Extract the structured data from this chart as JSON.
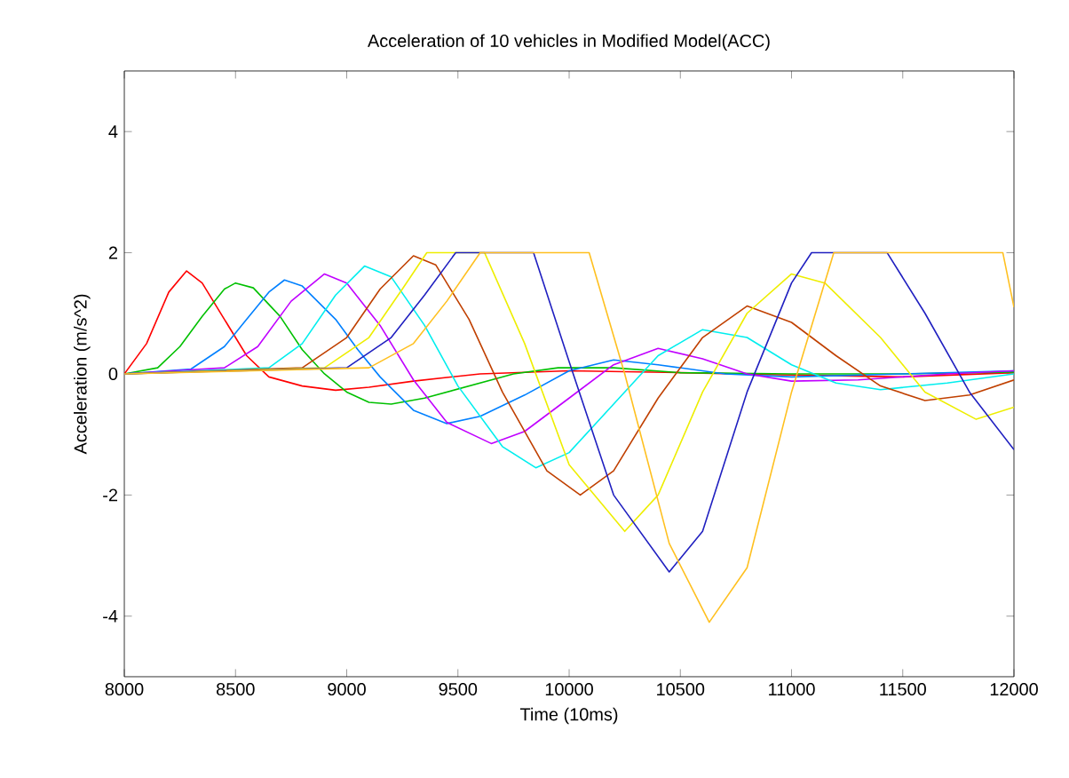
{
  "chart_data": {
    "type": "line",
    "title": "Acceleration of 10 vehicles in Modified Model(ACC)",
    "xlabel": "Time (10ms)",
    "ylabel": "Acceleration (m/s^2)",
    "xlim": [
      8000,
      12000
    ],
    "ylim": [
      -5,
      5
    ],
    "xticks": [
      8000,
      8500,
      9000,
      9500,
      10000,
      10500,
      11000,
      11500,
      12000
    ],
    "yticks": [
      -4,
      -2,
      0,
      2,
      4
    ],
    "grid": false,
    "marker": "none",
    "line_style": "solid",
    "series": [
      {
        "color": "#ff0000",
        "x": [
          8000,
          8100,
          8200,
          8280,
          8350,
          8450,
          8550,
          8650,
          8800,
          8950,
          9100,
          9300,
          9600,
          10000,
          10500,
          11000,
          11500,
          12000
        ],
        "values": [
          0,
          0.5,
          1.35,
          1.7,
          1.5,
          0.9,
          0.3,
          -0.05,
          -0.2,
          -0.27,
          -0.22,
          -0.12,
          0,
          0.05,
          0.02,
          -0.02,
          -0.05,
          0.02
        ]
      },
      {
        "color": "#00c000",
        "x": [
          8000,
          8150,
          8250,
          8350,
          8450,
          8500,
          8580,
          8700,
          8800,
          8900,
          9000,
          9100,
          9200,
          9350,
          9550,
          9750,
          9950,
          10200,
          10500,
          11000,
          11500,
          12000
        ],
        "values": [
          0,
          0.1,
          0.45,
          0.95,
          1.4,
          1.5,
          1.42,
          0.95,
          0.4,
          0,
          -0.3,
          -0.47,
          -0.5,
          -0.4,
          -0.2,
          0,
          0.1,
          0.1,
          0.02,
          0,
          0,
          0.03
        ]
      },
      {
        "color": "#0080ff",
        "x": [
          8000,
          8300,
          8450,
          8550,
          8650,
          8720,
          8800,
          8950,
          9050,
          9150,
          9300,
          9450,
          9600,
          9800,
          10000,
          10200,
          10400,
          10700,
          11000,
          11500,
          12000
        ],
        "values": [
          0,
          0.08,
          0.45,
          0.9,
          1.35,
          1.55,
          1.45,
          0.9,
          0.4,
          -0.05,
          -0.6,
          -0.82,
          -0.7,
          -0.35,
          0.05,
          0.23,
          0.15,
          0,
          -0.05,
          0,
          0.05
        ]
      },
      {
        "color": "#c000ff",
        "x": [
          8000,
          8450,
          8600,
          8750,
          8900,
          9000,
          9150,
          9300,
          9450,
          9650,
          9800,
          10000,
          10200,
          10400,
          10600,
          10800,
          11000,
          11300,
          11700,
          12000
        ],
        "values": [
          0,
          0.1,
          0.45,
          1.2,
          1.65,
          1.5,
          0.8,
          -0.1,
          -0.8,
          -1.15,
          -0.95,
          -0.4,
          0.15,
          0.42,
          0.25,
          0,
          -0.12,
          -0.1,
          0,
          0.05
        ]
      },
      {
        "color": "#00eeee",
        "x": [
          8000,
          8650,
          8800,
          8950,
          9080,
          9200,
          9350,
          9500,
          9700,
          9850,
          10000,
          10200,
          10400,
          10600,
          10800,
          11000,
          11200,
          11400,
          11700,
          12000
        ],
        "values": [
          0,
          0.1,
          0.5,
          1.3,
          1.78,
          1.6,
          0.8,
          -0.2,
          -1.2,
          -1.55,
          -1.3,
          -0.5,
          0.3,
          0.73,
          0.6,
          0.15,
          -0.15,
          -0.26,
          -0.15,
          0
        ]
      },
      {
        "color": "#c04000",
        "x": [
          8000,
          8800,
          9000,
          9150,
          9300,
          9400,
          9550,
          9700,
          9900,
          10050,
          10200,
          10400,
          10600,
          10800,
          11000,
          11200,
          11400,
          11600,
          11800,
          12000
        ],
        "values": [
          0,
          0.1,
          0.6,
          1.4,
          1.95,
          1.8,
          0.9,
          -0.3,
          -1.6,
          -2.0,
          -1.6,
          -0.4,
          0.6,
          1.12,
          0.85,
          0.3,
          -0.2,
          -0.44,
          -0.35,
          -0.1
        ]
      },
      {
        "color": "#eeee00",
        "x": [
          8000,
          8900,
          9100,
          9250,
          9360,
          9620,
          9800,
          10000,
          10250,
          10400,
          10600,
          10800,
          11000,
          11150,
          11400,
          11600,
          11830,
          12000
        ],
        "values": [
          0,
          0.1,
          0.6,
          1.4,
          2,
          2,
          0.5,
          -1.5,
          -2.6,
          -2.0,
          -0.3,
          1.0,
          1.65,
          1.5,
          0.6,
          -0.3,
          -0.75,
          -0.55
        ]
      },
      {
        "color": "#2020c0",
        "x": [
          8000,
          9000,
          9200,
          9350,
          9490,
          9840,
          10000,
          10200,
          10450,
          10600,
          10800,
          11000,
          11090,
          11430,
          11600,
          11800,
          12000
        ],
        "values": [
          0,
          0.1,
          0.6,
          1.3,
          2,
          2,
          0.2,
          -2,
          -3.27,
          -2.6,
          -0.3,
          1.5,
          2,
          2,
          1,
          -0.3,
          -1.25
        ]
      },
      {
        "color": "#ffc020",
        "x": [
          8000,
          9100,
          9300,
          9450,
          9600,
          10090,
          10250,
          10450,
          10630,
          10800,
          11000,
          11190,
          11950,
          12000
        ],
        "values": [
          0,
          0.1,
          0.5,
          1.2,
          2,
          2,
          0,
          -2.8,
          -4.1,
          -3.2,
          -0.3,
          2,
          2,
          1.1
        ]
      }
    ]
  }
}
